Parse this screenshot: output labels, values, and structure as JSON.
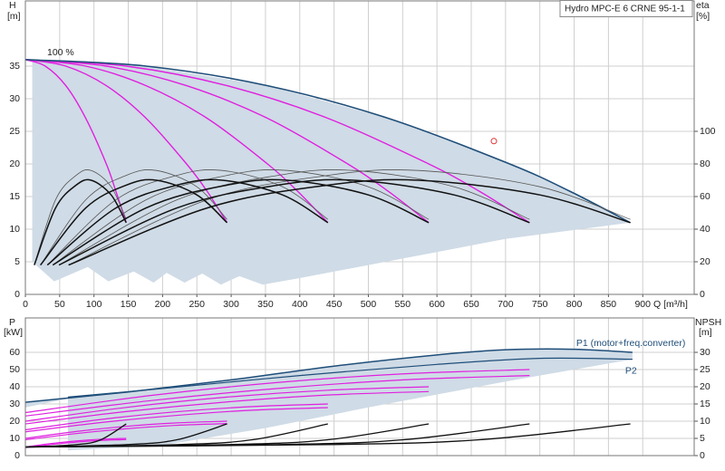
{
  "chart_data": [
    {
      "type": "line",
      "title": "Hydro MPC-E 6 CRNE 95-1-1",
      "annotation": "100 %",
      "ylabel": "H",
      "ylabel_unit": "[m]",
      "y2label": "eta",
      "y2label_unit": "[%]",
      "xlabel": "Q [m³/h]",
      "xlim": [
        0,
        975
      ],
      "xticks": [
        0,
        50,
        100,
        150,
        200,
        250,
        300,
        350,
        400,
        450,
        500,
        550,
        600,
        650,
        700,
        750,
        800,
        850,
        900
      ],
      "ylim": [
        0,
        45
      ],
      "yticks": [
        0,
        5,
        10,
        15,
        20,
        25,
        30,
        35
      ],
      "y2lim": [
        0,
        180
      ],
      "y2ticks": [
        0,
        20,
        40,
        60,
        80,
        100
      ],
      "grid": true,
      "series": [
        {
          "color": "#cfdbe6",
          "fill": true,
          "x": [
            10,
            176,
            353,
            529,
            706,
            794,
            882,
            700,
            600,
            500,
            400,
            346,
            312,
            285,
            258,
            232,
            206,
            187,
            158,
            121,
            91,
            42,
            10
          ],
          "values": [
            36,
            35,
            32,
            27,
            20,
            15.8,
            11,
            8.5,
            6.5,
            4.5,
            2.5,
            1.5,
            2.8,
            1.5,
            3.2,
            1.8,
            3.3,
            1.8,
            3.5,
            2,
            4.2,
            2,
            5
          ]
        },
        {
          "color": "#e020e0",
          "width": 1.4,
          "x": [
            0,
            29,
            59,
            88,
            118,
            132,
            147
          ],
          "values": [
            36,
            35,
            32,
            27,
            20,
            15.8,
            11
          ]
        },
        {
          "color": "#e020e0",
          "width": 1.4,
          "x": [
            0,
            59,
            118,
            176,
            235,
            265,
            294
          ],
          "values": [
            36,
            35,
            32,
            27,
            20,
            15.8,
            11
          ]
        },
        {
          "color": "#e020e0",
          "width": 1.4,
          "x": [
            0,
            88,
            176,
            265,
            353,
            397,
            441
          ],
          "values": [
            36,
            35,
            32,
            27,
            20,
            15.8,
            11
          ]
        },
        {
          "color": "#e020e0",
          "width": 1.4,
          "x": [
            0,
            118,
            235,
            353,
            470,
            529,
            588
          ],
          "values": [
            36,
            35,
            32,
            27,
            20,
            15.8,
            11
          ]
        },
        {
          "color": "#e020e0",
          "width": 1.4,
          "x": [
            0,
            147,
            294,
            441,
            588,
            662,
            735
          ],
          "values": [
            36,
            35,
            32,
            27,
            20,
            15.8,
            11
          ]
        },
        {
          "color": "#1f4e79",
          "width": 1.6,
          "x": [
            0,
            176,
            353,
            529,
            706,
            794,
            882
          ],
          "values": [
            36,
            35,
            32,
            27,
            20,
            15.8,
            11
          ]
        },
        {
          "color": "#555555",
          "width": 0.8,
          "axis": "y2",
          "x": [
            13,
            44,
            74,
            96,
            125,
            147
          ],
          "values": [
            18,
            58,
            73,
            76,
            66,
            46
          ]
        },
        {
          "color": "#555555",
          "width": 0.8,
          "axis": "y2",
          "x": [
            22,
            88,
            147,
            191,
            250,
            294
          ],
          "values": [
            18,
            58,
            73,
            76,
            66,
            46
          ]
        },
        {
          "color": "#555555",
          "width": 0.8,
          "axis": "y2",
          "x": [
            32,
            132,
            221,
            287,
            375,
            441
          ],
          "values": [
            18,
            58,
            73,
            76,
            66,
            46
          ]
        },
        {
          "color": "#555555",
          "width": 0.8,
          "axis": "y2",
          "x": [
            40,
            176,
            294,
            382,
            500,
            588
          ],
          "values": [
            18,
            58,
            73,
            76,
            66,
            46
          ]
        },
        {
          "color": "#555555",
          "width": 0.8,
          "axis": "y2",
          "x": [
            49,
            221,
            368,
            478,
            625,
            735
          ],
          "values": [
            18,
            58,
            73,
            76,
            66,
            46
          ]
        },
        {
          "color": "#555555",
          "width": 0.8,
          "axis": "y2",
          "x": [
            63,
            265,
            441,
            573,
            750,
            882
          ],
          "values": [
            18,
            58,
            73,
            76,
            66,
            46
          ]
        },
        {
          "color": "#111111",
          "width": 1.5,
          "axis": "y2",
          "x": [
            13,
            44,
            74,
            96,
            125,
            147
          ],
          "values": [
            18,
            53,
            67,
            70,
            61,
            44
          ]
        },
        {
          "color": "#111111",
          "width": 1.5,
          "axis": "y2",
          "x": [
            22,
            88,
            147,
            191,
            250,
            294
          ],
          "values": [
            18,
            53,
            67,
            70,
            61,
            44
          ]
        },
        {
          "color": "#111111",
          "width": 1.5,
          "axis": "y2",
          "x": [
            32,
            132,
            221,
            287,
            375,
            441
          ],
          "values": [
            18,
            53,
            67,
            70,
            61,
            44
          ]
        },
        {
          "color": "#111111",
          "width": 1.5,
          "axis": "y2",
          "x": [
            40,
            176,
            294,
            382,
            500,
            588
          ],
          "values": [
            18,
            53,
            67,
            70,
            61,
            44
          ]
        },
        {
          "color": "#111111",
          "width": 1.5,
          "axis": "y2",
          "x": [
            49,
            221,
            368,
            478,
            625,
            735
          ],
          "values": [
            18,
            53,
            67,
            70,
            61,
            44
          ]
        },
        {
          "color": "#111111",
          "width": 1.5,
          "axis": "y2",
          "x": [
            63,
            265,
            441,
            573,
            750,
            882
          ],
          "values": [
            18,
            53,
            67,
            70,
            61,
            44
          ]
        }
      ],
      "markers": [
        {
          "x": 683,
          "y": 23.5,
          "color": "#e03030"
        }
      ]
    },
    {
      "type": "line",
      "ylabel": "P",
      "ylabel_unit": "[kW]",
      "y2label": "NPSH",
      "y2label_unit": "[m]",
      "ylim": [
        0,
        80
      ],
      "yticks": [
        0,
        10,
        20,
        30,
        40,
        50,
        60
      ],
      "y2lim": [
        0,
        40
      ],
      "y2ticks": [
        0,
        5,
        10,
        15,
        20,
        25,
        30
      ],
      "grid": true,
      "series": [
        {
          "color": "#cfdbe6",
          "fill": true,
          "x": [
            0,
            150,
            300,
            450,
            600,
            700,
            800,
            885,
            885,
            700,
            500,
            350,
            200,
            62,
            62,
            0
          ],
          "values": [
            31,
            37,
            44,
            52,
            58.5,
            61.5,
            61.8,
            60,
            56,
            43,
            28,
            16,
            6,
            3,
            33,
            28
          ]
        },
        {
          "color": "#e020e0",
          "width": 1.2,
          "x": [
            0,
            37,
            74,
            110,
            147
          ],
          "values": [
            5,
            7,
            8.5,
            9.5,
            10
          ]
        },
        {
          "color": "#e020e0",
          "width": 1.2,
          "x": [
            0,
            37,
            74,
            110,
            147
          ],
          "values": [
            4.6,
            6.4,
            7.8,
            8.8,
            9.3
          ]
        },
        {
          "color": "#e020e0",
          "width": 1.2,
          "x": [
            0,
            74,
            147,
            221,
            294
          ],
          "values": [
            10,
            14,
            17,
            19,
            20
          ]
        },
        {
          "color": "#e020e0",
          "width": 1.2,
          "x": [
            0,
            74,
            147,
            221,
            294
          ],
          "values": [
            9.2,
            12.8,
            15.6,
            17.6,
            18.6
          ]
        },
        {
          "color": "#e020e0",
          "width": 1.2,
          "x": [
            0,
            110,
            221,
            331,
            441
          ],
          "values": [
            15,
            21,
            25.5,
            28.5,
            30
          ]
        },
        {
          "color": "#e020e0",
          "width": 1.2,
          "x": [
            0,
            110,
            221,
            331,
            441
          ],
          "values": [
            13.8,
            19.2,
            23.4,
            26.4,
            27.9
          ]
        },
        {
          "color": "#e020e0",
          "width": 1.2,
          "x": [
            0,
            147,
            294,
            441,
            588
          ],
          "values": [
            20,
            28,
            34,
            38,
            40
          ]
        },
        {
          "color": "#e020e0",
          "width": 1.2,
          "x": [
            0,
            147,
            294,
            441,
            588
          ],
          "values": [
            18.4,
            25.6,
            31.2,
            35.2,
            37.2
          ]
        },
        {
          "color": "#e020e0",
          "width": 1.2,
          "x": [
            0,
            184,
            368,
            551,
            735
          ],
          "values": [
            25,
            35,
            42.5,
            47.5,
            50
          ]
        },
        {
          "color": "#e020e0",
          "width": 1.2,
          "x": [
            0,
            184,
            368,
            551,
            735
          ],
          "values": [
            23,
            32,
            39,
            44,
            46.5
          ]
        },
        {
          "name": "P1 (motor+freq.converter)",
          "color": "#1f4e79",
          "width": 1.5,
          "x": [
            0,
            150,
            300,
            450,
            600,
            700,
            800,
            885
          ],
          "values": [
            31,
            37,
            44,
            52,
            58.5,
            61.5,
            61.8,
            60
          ]
        },
        {
          "name": "P2",
          "color": "#1f4e79",
          "width": 1.2,
          "x": [
            62,
            200,
            400,
            600,
            750,
            885
          ],
          "values": [
            34,
            39,
            46.5,
            53,
            56.5,
            56
          ]
        },
        {
          "color": "#111111",
          "width": 1.3,
          "axis": "y2",
          "x": [
            0,
            74,
            110,
            147
          ],
          "values": [
            2.5,
            3.2,
            4.6,
            9.2
          ]
        },
        {
          "color": "#111111",
          "width": 1.3,
          "axis": "y2",
          "x": [
            0,
            147,
            221,
            294
          ],
          "values": [
            2.5,
            3.2,
            4.6,
            9.2
          ]
        },
        {
          "color": "#111111",
          "width": 1.3,
          "axis": "y2",
          "x": [
            0,
            221,
            331,
            441
          ],
          "values": [
            2.5,
            3.2,
            4.6,
            9.2
          ]
        },
        {
          "color": "#111111",
          "width": 1.3,
          "axis": "y2",
          "x": [
            0,
            294,
            441,
            588
          ],
          "values": [
            2.5,
            3.2,
            4.6,
            9.2
          ]
        },
        {
          "color": "#111111",
          "width": 1.3,
          "axis": "y2",
          "x": [
            0,
            368,
            551,
            735
          ],
          "values": [
            2.5,
            3.2,
            4.6,
            9.2
          ]
        },
        {
          "color": "#111111",
          "width": 1.3,
          "axis": "y2",
          "x": [
            0,
            441,
            662,
            882
          ],
          "values": [
            2.5,
            3.2,
            4.6,
            9.2
          ]
        }
      ]
    }
  ]
}
